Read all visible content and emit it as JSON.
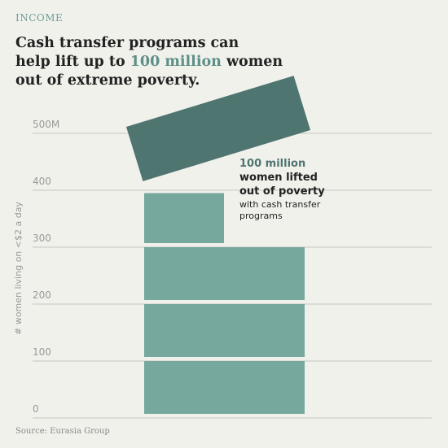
{
  "header": {
    "kicker": "INCOME",
    "title_line1": "Cash transfer programs can",
    "title_line2_start": "help lift up to ",
    "title_highlight": "100 million",
    "title_line2_end": " women",
    "title_line3": "out of extreme poverty."
  },
  "chart_data": {
    "type": "stacked-blocks",
    "y_label": "# women living  on <$2 a day",
    "ylim": [
      0,
      500
    ],
    "yticks": [
      0,
      100,
      200,
      300,
      400,
      {
        "value": 500,
        "label": "500M"
      }
    ],
    "grid": true,
    "color": "#76a89e",
    "values": [
      100,
      100,
      100,
      95
    ],
    "lifted": {
      "value": 100,
      "color": "#4f7571",
      "highlight": "100 million",
      "line1": "women lifted",
      "line2": "out of poverty",
      "note": "with cash transfer programs"
    }
  },
  "source": "Source: Eurasia Group"
}
